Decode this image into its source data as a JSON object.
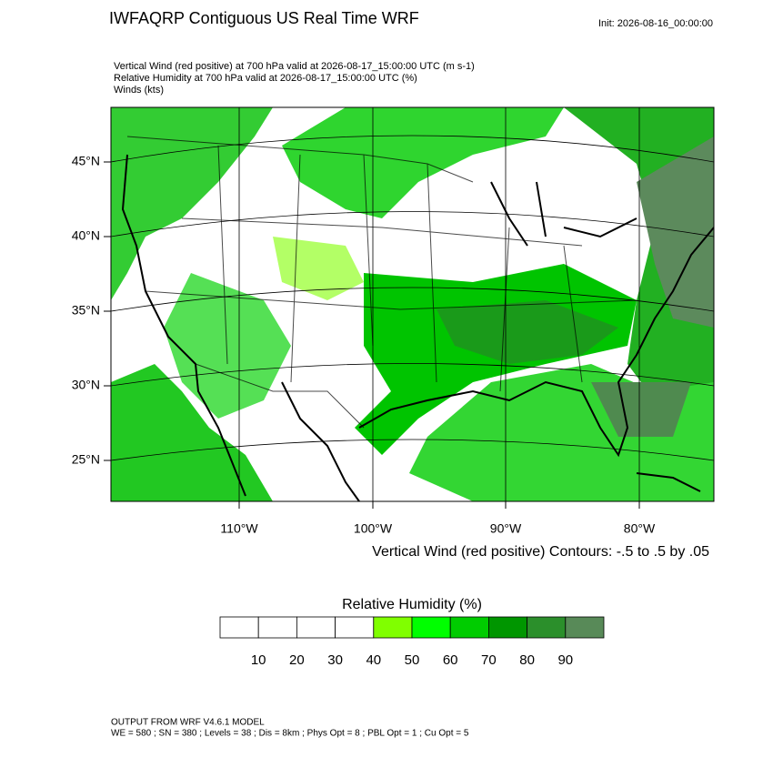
{
  "title": "IWFAQRP Contiguous US Real Time WRF",
  "init": "Init: 2026-08-16_00:00:00",
  "fields": [
    "Vertical Wind (red positive) at 700 hPa valid at 2026-08-17_15:00:00 UTC   (m s-1)",
    "Relative Humidity at 700 hPa valid at 2026-08-17_15:00:00 UTC   (%)",
    "Winds   (kts)"
  ],
  "map": {
    "lat_labels": [
      "45°N",
      "40°N",
      "35°N",
      "30°N",
      "25°N"
    ],
    "lon_labels": [
      "110°W",
      "100°W",
      "90°W",
      "80°W"
    ]
  },
  "contour_note": "Vertical Wind (red positive) Contours: -.5 to .5 by .05",
  "colorbar": {
    "title": "Relative Humidity  (%)",
    "ticks": [
      10,
      20,
      30,
      40,
      50,
      60,
      70,
      80,
      90
    ],
    "colors": [
      "#ffffff",
      "#ffffff",
      "#ffffff",
      "#ffffff",
      "#80ff00",
      "#00ff00",
      "#00cc00",
      "#009600",
      "#2b8f2b",
      "#588a58"
    ]
  },
  "footer": [
    "OUTPUT FROM WRF V4.6.1 MODEL",
    "WE = 580 ; SN = 380 ; Levels = 38 ; Dis = 8km ; Phys Opt = 8 ; PBL Opt = 1 ; Cu Opt = 5"
  ]
}
